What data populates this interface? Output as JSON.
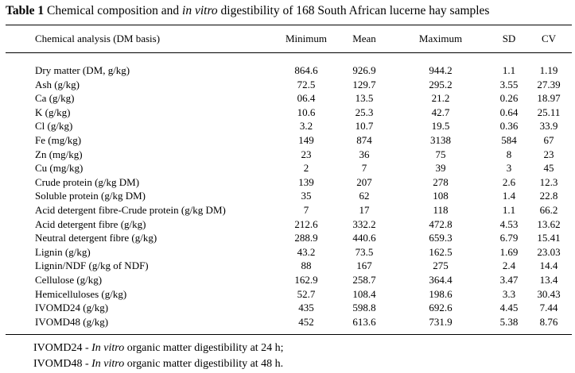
{
  "title": {
    "label": "Table 1",
    "text_before": " Chemical composition and ",
    "text_italic": "in vitro",
    "text_after": " digestibility of 168 South African lucerne hay samples"
  },
  "columns": [
    "Chemical analysis  (DM basis)",
    "Minimum",
    "Mean",
    "Maximum",
    "SD",
    "CV"
  ],
  "rows": [
    [
      "Dry matter (DM, g/kg)",
      "864.6",
      "926.9",
      "944.2",
      "1.1",
      "1.19"
    ],
    [
      "Ash (g/kg)",
      "72.5",
      "129.7",
      "295.2",
      "3.55",
      "27.39"
    ],
    [
      "Ca (g/kg)",
      "06.4",
      "13.5",
      "21.2",
      "0.26",
      "18.97"
    ],
    [
      "K (g/kg)",
      "10.6",
      "25.3",
      "42.7",
      "0.64",
      "25.11"
    ],
    [
      "Cl (g/kg)",
      "3.2",
      "10.7",
      "19.5",
      "0.36",
      "33.9"
    ],
    [
      "Fe (mg/kg)",
      "149",
      "874",
      "3138",
      "584",
      "67"
    ],
    [
      "Zn (mg/kg)",
      "23",
      "36",
      "75",
      "8",
      "23"
    ],
    [
      "Cu (mg/kg)",
      "2",
      "7",
      "39",
      "3",
      "45"
    ],
    [
      "Crude protein (g/kg DM)",
      "139",
      "207",
      "278",
      "2.6",
      "12.3"
    ],
    [
      "Soluble protein (g/kg DM)",
      "35",
      "62",
      "108",
      "1.4",
      "22.8"
    ],
    [
      "Acid detergent fibre-Crude protein (g/kg DM)",
      "7",
      "17",
      "118",
      "1.1",
      "66.2"
    ],
    [
      "Acid detergent fibre (g/kg)",
      "212.6",
      "332.2",
      "472.8",
      "4.53",
      "13.62"
    ],
    [
      "Neutral detergent fibre (g/kg)",
      "288.9",
      "440.6",
      "659.3",
      "6.79",
      "15.41"
    ],
    [
      "Lignin (g/kg)",
      "43.2",
      "73.5",
      "162.5",
      "1.69",
      "23.03"
    ],
    [
      "Lignin/NDF (g/kg of NDF)",
      "88",
      "167",
      "275",
      "2.4",
      "14.4"
    ],
    [
      "Cellulose (g/kg)",
      "162.9",
      "258.7",
      "364.4",
      "3.47",
      "13.4"
    ],
    [
      "Hemicelluloses (g/kg)",
      "52.7",
      "108.4",
      "198.6",
      "3.3",
      "30.43"
    ],
    [
      "IVOMD24 (g/kg)",
      "435",
      "598.8",
      "692.6",
      "4.45",
      "7.44"
    ],
    [
      "IVOMD48 (g/kg)",
      "452",
      "613.6",
      "731.9",
      "5.38",
      "8.76"
    ]
  ],
  "footnotes": [
    {
      "prefix": "IVOMD24 - ",
      "italic": "In vitro",
      "suffix": " organic matter digestibility at 24 h;"
    },
    {
      "prefix": "IVOMD48 - ",
      "italic": "In vitro",
      "suffix": " organic matter digestibility at 48 h."
    }
  ]
}
